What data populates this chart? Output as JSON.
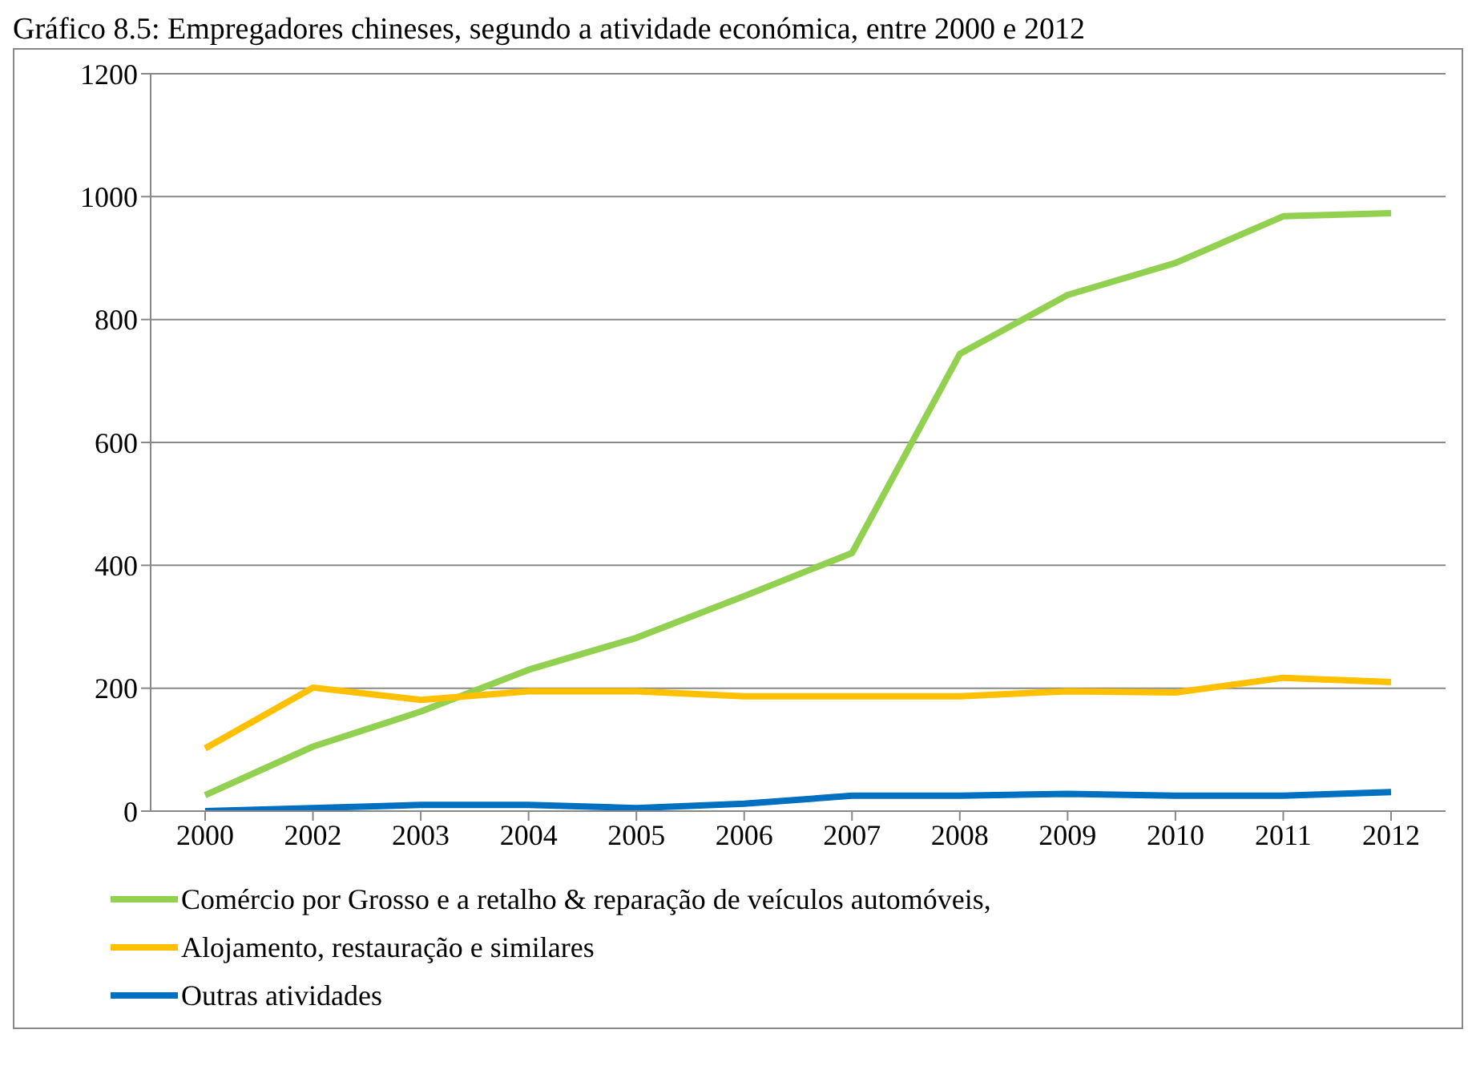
{
  "chart_data": {
    "type": "line",
    "title": "Gráfico 8.5: Empregadores chineses, segundo a atividade económica, entre 2000 e 2012",
    "categories": [
      "2000",
      "2002",
      "2003",
      "2004",
      "2005",
      "2006",
      "2007",
      "2008",
      "2009",
      "2010",
      "2011",
      "2012"
    ],
    "series": [
      {
        "name": "Comércio  por Grosso e a retalho & reparação de veículos automóveis,",
        "color": "#92d050",
        "values": [
          26,
          105,
          162,
          230,
          282,
          350,
          420,
          744,
          840,
          892,
          968,
          973
        ]
      },
      {
        "name": "Alojamento, restauração e similares",
        "color": "#ffc000",
        "values": [
          102,
          201,
          181,
          195,
          195,
          187,
          187,
          187,
          195,
          193,
          217,
          210
        ]
      },
      {
        "name": "Outras atividades",
        "color": "#0070c0",
        "values": [
          0,
          5,
          10,
          10,
          5,
          12,
          25,
          25,
          28,
          25,
          25,
          31
        ]
      }
    ],
    "ylim": [
      0,
      1200
    ],
    "yticks": [
      0,
      200,
      400,
      600,
      800,
      1000,
      1200
    ],
    "grid": "y",
    "legend": "bottom",
    "marker": "none",
    "line_style": "solid"
  }
}
